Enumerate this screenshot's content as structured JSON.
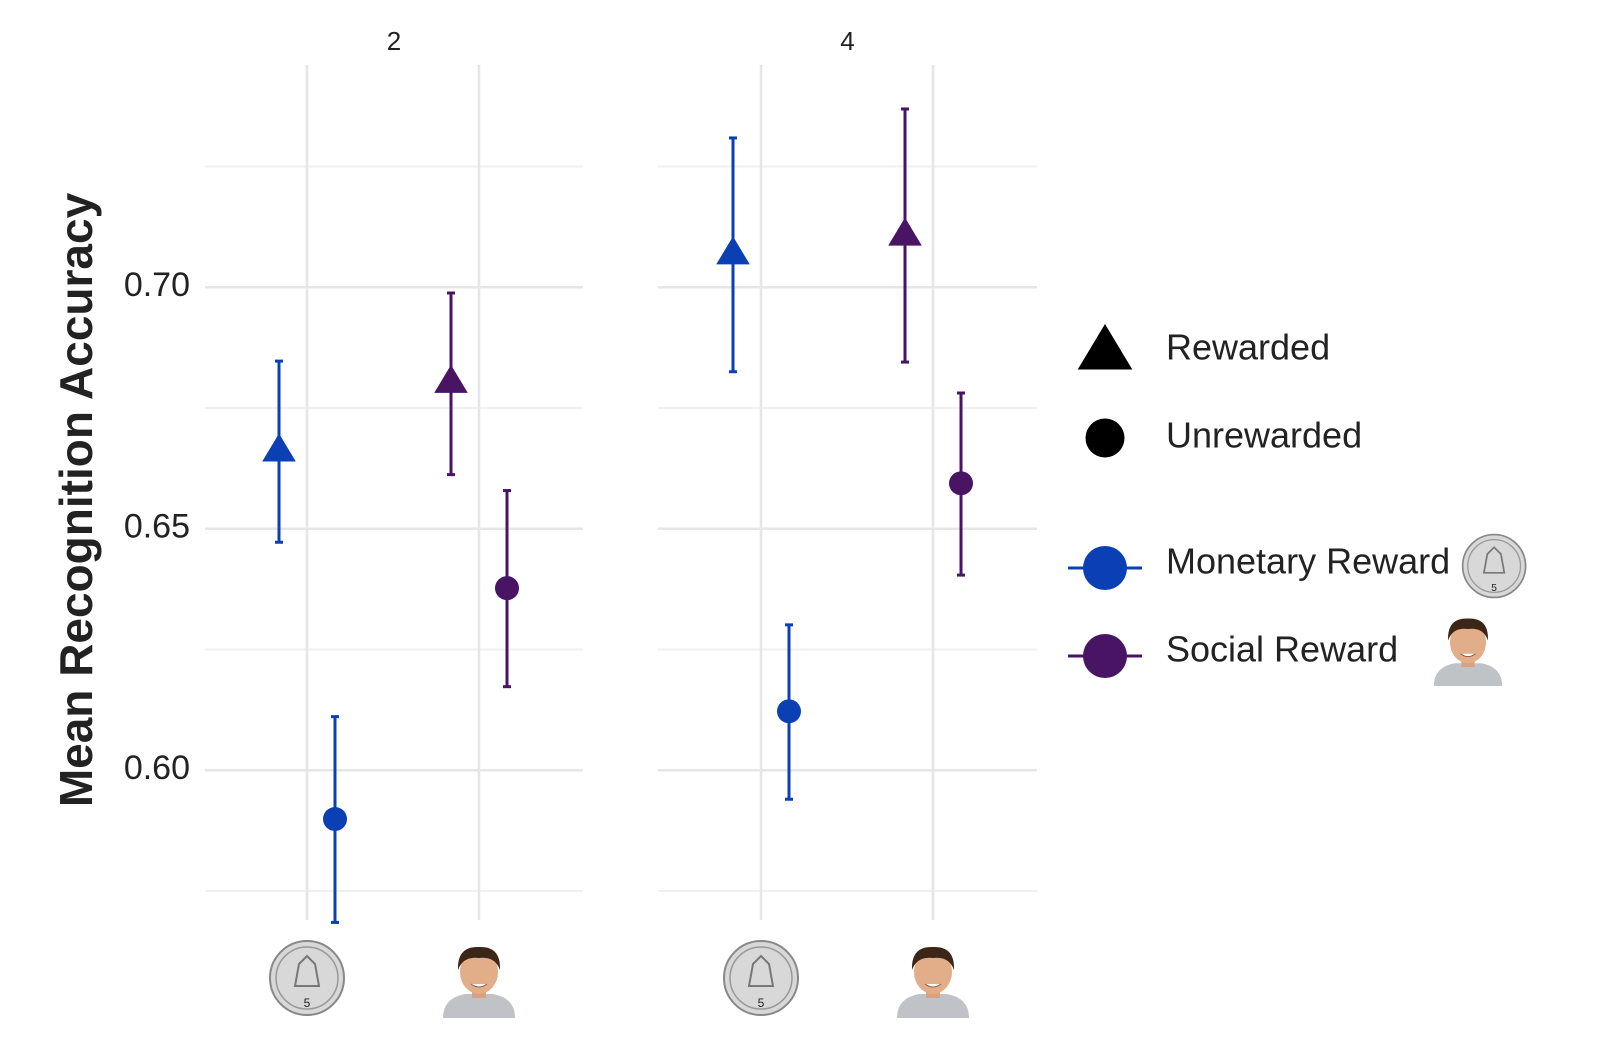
{
  "chart_data": {
    "type": "errorbar",
    "y_label": "Mean Recognition Accuracy",
    "ylim": [
      0.569,
      0.746
    ],
    "yticks": [
      {
        "value": 0.6,
        "label": "0.60"
      },
      {
        "value": 0.65,
        "label": "0.65"
      },
      {
        "value": 0.7,
        "label": "0.70"
      }
    ],
    "minor_yticks": [
      0.575,
      0.625,
      0.675,
      0.725
    ],
    "grid": true,
    "shapes": [
      {
        "name": "Rewarded",
        "shape": "triangle"
      },
      {
        "name": "Unrewarded",
        "shape": "circle"
      }
    ],
    "series": [
      {
        "name": "Monetary Reward",
        "color": "#0a40b4"
      },
      {
        "name": "Social Reward",
        "color": "#4a1464"
      }
    ],
    "facets": [
      {
        "title": "2",
        "values": [
          [
            0.6664,
            0.5899
          ],
          [
            0.6806,
            0.6377
          ]
        ],
        "low": [
          [
            0.6472,
            0.5685
          ],
          [
            0.6612,
            0.6173
          ]
        ],
        "high": [
          [
            0.6847,
            0.6111
          ],
          [
            0.6988,
            0.6579
          ]
        ]
      },
      {
        "title": "4",
        "values": [
          [
            0.7072,
            0.6122
          ],
          [
            0.7111,
            0.6594
          ]
        ],
        "low": [
          [
            0.6825,
            0.594
          ],
          [
            0.6845,
            0.6404
          ]
        ],
        "high": [
          [
            0.7309,
            0.6301
          ],
          [
            0.7369,
            0.6781
          ]
        ]
      }
    ]
  }
}
